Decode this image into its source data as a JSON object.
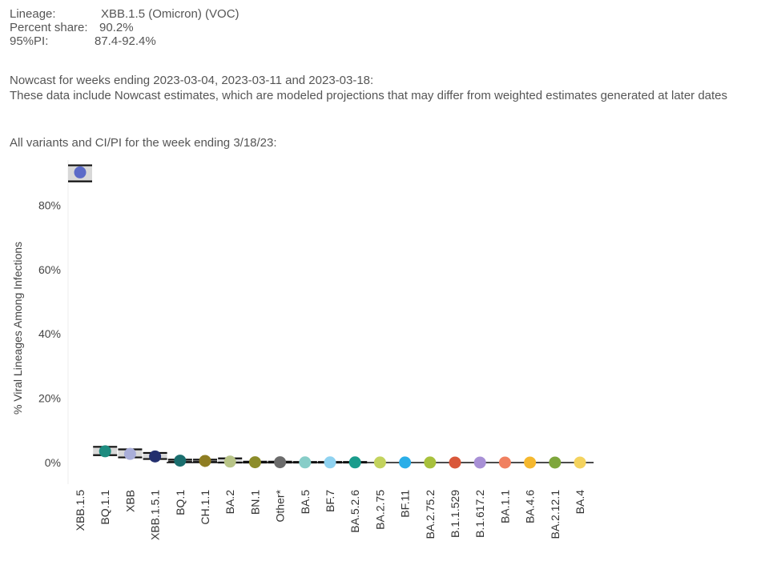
{
  "header": {
    "lineage_label": "Lineage:",
    "lineage_value": "XBB.1.5 (Omicron) (VOC)",
    "share_label": "Percent share:",
    "share_value": "90.2%",
    "pi_label": "95%PI:",
    "pi_value": "87.4-92.4%"
  },
  "nowcast": {
    "line1": "Nowcast for weeks ending 2023-03-04, 2023-03-11 and 2023-03-18:",
    "line2": "These data include Nowcast estimates, which are modeled projections that may differ from weighted estimates generated at later dates"
  },
  "subtitle": "All variants and CI/PI for the week ending 3/18/23:",
  "chart_data": {
    "type": "scatter",
    "ylabel": "% Viral Lineages Among Infections",
    "ylim": [
      0,
      95
    ],
    "yticks": [
      0,
      20,
      40,
      60,
      80
    ],
    "ytick_labels": [
      "0%",
      "20%",
      "40%",
      "60%",
      "80%"
    ],
    "grid": false,
    "categories": [
      "XBB.1.5",
      "BQ.1.1",
      "XBB",
      "XBB.1.5.1",
      "BQ.1",
      "CH.1.1",
      "BA.2",
      "BN.1",
      "Other*",
      "BA.5",
      "BF.7",
      "BA.5.2.6",
      "BA.2.75",
      "BF.11",
      "BA.2.75.2",
      "B.1.1.529",
      "B.1.617.2",
      "BA.1.1",
      "BA.4.6",
      "BA.2.12.1",
      "BA.4"
    ],
    "values": [
      90.2,
      3.5,
      2.7,
      1.9,
      0.6,
      0.5,
      0.3,
      0.1,
      0.1,
      0.05,
      0.05,
      0.05,
      0.03,
      0.03,
      0.02,
      0.01,
      0.01,
      0.01,
      0.01,
      0.01,
      0.01
    ],
    "lower": [
      87.4,
      2.3,
      1.6,
      1.1,
      0.2,
      0.2,
      0.0,
      0,
      0,
      0,
      0,
      0,
      0,
      0,
      0,
      0,
      0,
      0,
      0,
      0,
      0
    ],
    "upper": [
      92.4,
      4.9,
      4.1,
      3.0,
      0.9,
      0.9,
      1.3,
      0.3,
      0.3,
      0.2,
      0.2,
      0.2,
      0.1,
      0.1,
      0.1,
      0.05,
      0.05,
      0.05,
      0.05,
      0.05,
      0.05
    ],
    "colors": [
      "#5b6ac8",
      "#1e8c80",
      "#a9aed9",
      "#232f6e",
      "#1a6e6e",
      "#8e7d22",
      "#b8c487",
      "#8c8c2a",
      "#6b6b6b",
      "#87cdc8",
      "#8fd2f0",
      "#1a9c8c",
      "#c3d35d",
      "#2aaee8",
      "#a8c13c",
      "#d9583a",
      "#a890d6",
      "#f08060",
      "#f5b82e",
      "#7ea63c",
      "#f4d35e"
    ]
  }
}
